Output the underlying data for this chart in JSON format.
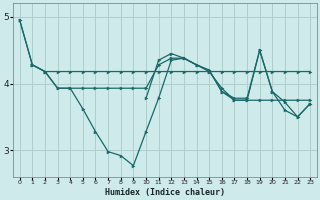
{
  "xlabel": "Humidex (Indice chaleur)",
  "xlim": [
    -0.5,
    23.5
  ],
  "ylim": [
    2.6,
    5.2
  ],
  "yticks": [
    3,
    4,
    5
  ],
  "xticks": [
    0,
    1,
    2,
    3,
    4,
    5,
    6,
    7,
    8,
    9,
    10,
    11,
    12,
    13,
    14,
    15,
    16,
    17,
    18,
    19,
    20,
    21,
    22,
    23
  ],
  "bg_color": "#ceeaea",
  "grid_color": "#aecece",
  "line_color": "#1a6868",
  "lines": [
    {
      "x": [
        0,
        1,
        2,
        3,
        4,
        5,
        6,
        7,
        8,
        9,
        10,
        11,
        12,
        13,
        14,
        15,
        16,
        17,
        18,
        19,
        20,
        21,
        22,
        23
      ],
      "y": [
        4.95,
        4.28,
        4.18,
        4.18,
        4.18,
        4.18,
        4.18,
        4.18,
        4.18,
        4.18,
        4.18,
        4.18,
        4.18,
        4.18,
        4.18,
        4.18,
        4.18,
        4.18,
        4.18,
        4.18,
        4.18,
        4.18,
        4.18,
        4.18
      ]
    },
    {
      "x": [
        1,
        2,
        3,
        4,
        5,
        6,
        7,
        8,
        9,
        10,
        11,
        12,
        13,
        14,
        15,
        16,
        17,
        18,
        19,
        20,
        21,
        22,
        23
      ],
      "y": [
        4.28,
        4.18,
        3.93,
        3.93,
        3.93,
        3.93,
        3.93,
        3.93,
        3.93,
        3.93,
        4.28,
        4.38,
        4.38,
        4.28,
        4.18,
        3.93,
        3.75,
        3.75,
        3.75,
        3.75,
        3.75,
        3.75,
        3.75
      ]
    },
    {
      "x": [
        0,
        1,
        2,
        3,
        4,
        5,
        6,
        7,
        8,
        9,
        10,
        11,
        12,
        13,
        14,
        15,
        16,
        17,
        18,
        19,
        20,
        21,
        22,
        23
      ],
      "y": [
        4.95,
        4.28,
        4.18,
        3.93,
        3.93,
        3.62,
        3.28,
        2.98,
        2.92,
        2.77,
        3.28,
        3.78,
        4.35,
        4.38,
        4.28,
        4.2,
        3.88,
        3.75,
        3.75,
        4.5,
        3.88,
        3.6,
        3.5,
        3.7
      ]
    },
    {
      "x": [
        10,
        11,
        12,
        13,
        14,
        15,
        16,
        17,
        18,
        19,
        20,
        21,
        22,
        23
      ],
      "y": [
        3.78,
        4.35,
        4.45,
        4.38,
        4.28,
        4.2,
        3.88,
        3.78,
        3.78,
        4.5,
        3.88,
        3.72,
        3.5,
        3.7
      ]
    }
  ]
}
